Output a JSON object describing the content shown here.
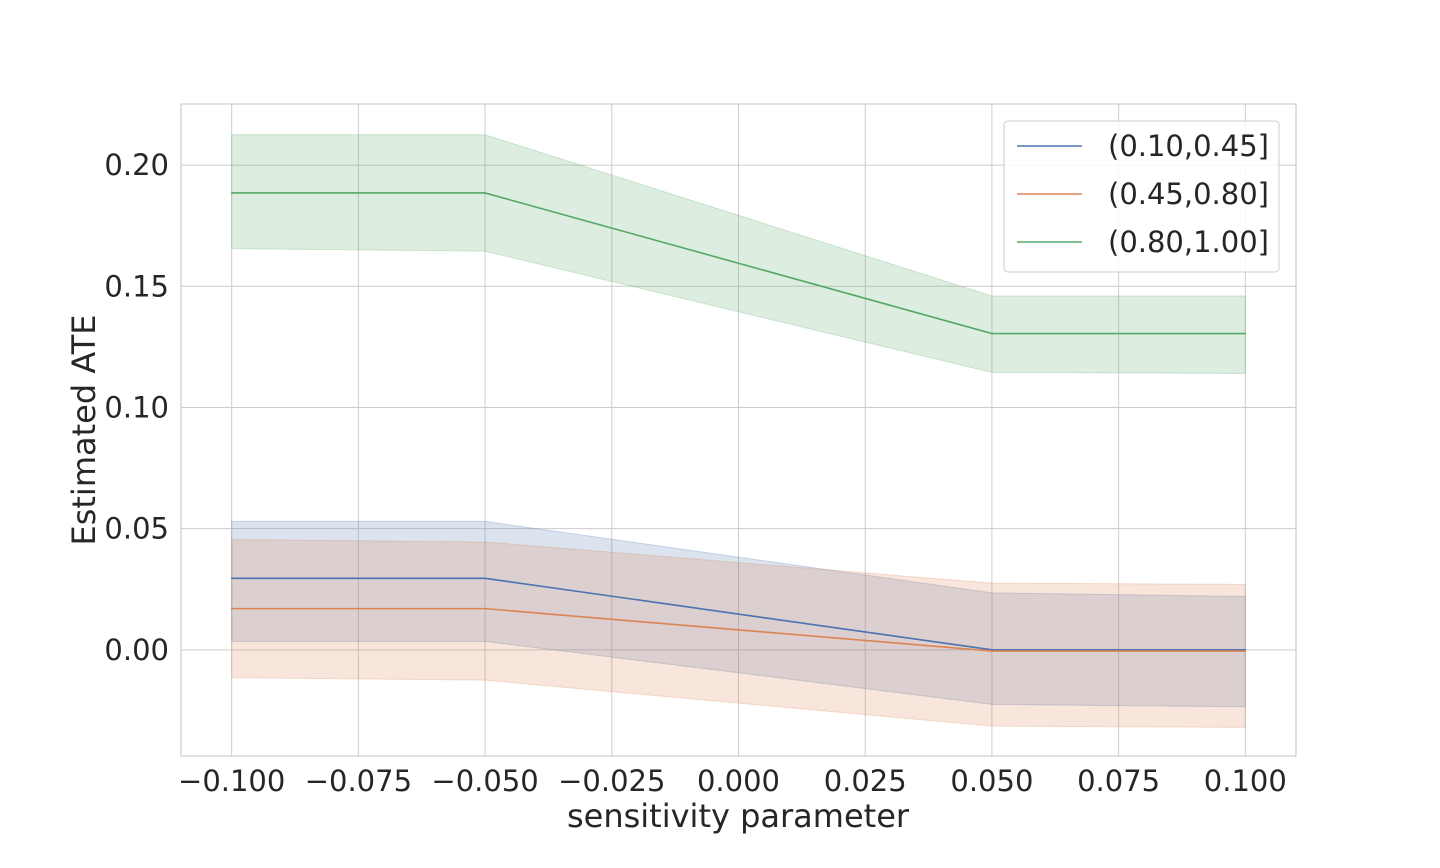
{
  "chart_data": {
    "type": "line",
    "title": "",
    "xlabel": "sensitivity parameter",
    "ylabel": "Estimated ATE",
    "xlim": [
      -0.11,
      0.11
    ],
    "ylim": [
      -0.0438,
      0.2252
    ],
    "x_ticks": [
      -0.1,
      -0.075,
      -0.05,
      -0.025,
      0.0,
      0.025,
      0.05,
      0.075,
      0.1
    ],
    "x_tick_labels": [
      "−0.100",
      "−0.075",
      "−0.050",
      "−0.025",
      "0.000",
      "0.025",
      "0.050",
      "0.075",
      "0.100"
    ],
    "y_ticks": [
      0.0,
      0.05,
      0.1,
      0.15,
      0.2
    ],
    "y_tick_labels": [
      "0.00",
      "0.05",
      "0.10",
      "0.15",
      "0.20"
    ],
    "grid": true,
    "legend_position": "top-right",
    "x": [
      -0.1,
      -0.05,
      0.05,
      0.1
    ],
    "series": [
      {
        "name": "(0.10,0.45]",
        "color": "#4c72b0",
        "values": [
          0.0295,
          0.0295,
          0.0,
          0.0
        ],
        "ci_lower": [
          0.0035,
          0.0035,
          -0.0225,
          -0.0235
        ],
        "ci_upper": [
          0.053,
          0.053,
          0.0235,
          0.022
        ]
      },
      {
        "name": "(0.45,0.80]",
        "color": "#dd8452",
        "values": [
          0.017,
          0.017,
          -0.0005,
          -0.0005
        ],
        "ci_lower": [
          -0.0115,
          -0.0125,
          -0.0315,
          -0.032
        ],
        "ci_upper": [
          0.0455,
          0.0445,
          0.0275,
          0.027
        ]
      },
      {
        "name": "(0.80,1.00]",
        "color": "#55a868",
        "values": [
          0.1885,
          0.1885,
          0.1305,
          0.1305
        ],
        "ci_lower": [
          0.1655,
          0.1645,
          0.1145,
          0.114
        ],
        "ci_upper": [
          0.2125,
          0.2125,
          0.146,
          0.146
        ]
      }
    ]
  }
}
